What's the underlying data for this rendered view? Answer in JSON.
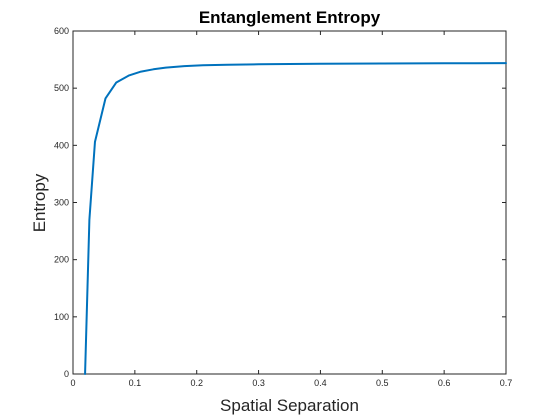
{
  "chart_data": {
    "type": "line",
    "title": "Entanglement Entropy",
    "xlabel": "Spatial Separation",
    "ylabel": "Entropy",
    "xlim": [
      0,
      0.7
    ],
    "ylim": [
      0,
      600
    ],
    "xticks": [
      0,
      0.1,
      0.2,
      0.3,
      0.4,
      0.5,
      0.6,
      0.7
    ],
    "xtick_labels": [
      "0",
      "0.1",
      "0.2",
      "0.3",
      "0.4",
      "0.5",
      "0.6",
      "0.7"
    ],
    "yticks": [
      0,
      100,
      200,
      300,
      400,
      500,
      600
    ],
    "ytick_labels": [
      "0",
      "100",
      "200",
      "300",
      "400",
      "500",
      "600"
    ],
    "grid": false,
    "box": true,
    "series": [
      {
        "color": "#0072BD",
        "x": [
          0.0195,
          0.0265,
          0.0355,
          0.0525,
          0.07,
          0.09,
          0.11,
          0.13,
          0.15,
          0.18,
          0.21,
          0.25,
          0.3,
          0.35,
          0.4,
          0.45,
          0.5,
          0.55,
          0.6,
          0.65,
          0.7
        ],
        "y": [
          0,
          270,
          406,
          482,
          510,
          522,
          529,
          533,
          536,
          538.5,
          540,
          541,
          541.8,
          542.3,
          542.7,
          543,
          543.2,
          543.4,
          543.5,
          543.6,
          543.7
        ]
      }
    ]
  },
  "colors": {
    "axis": "#262626",
    "background": "#ffffff"
  }
}
